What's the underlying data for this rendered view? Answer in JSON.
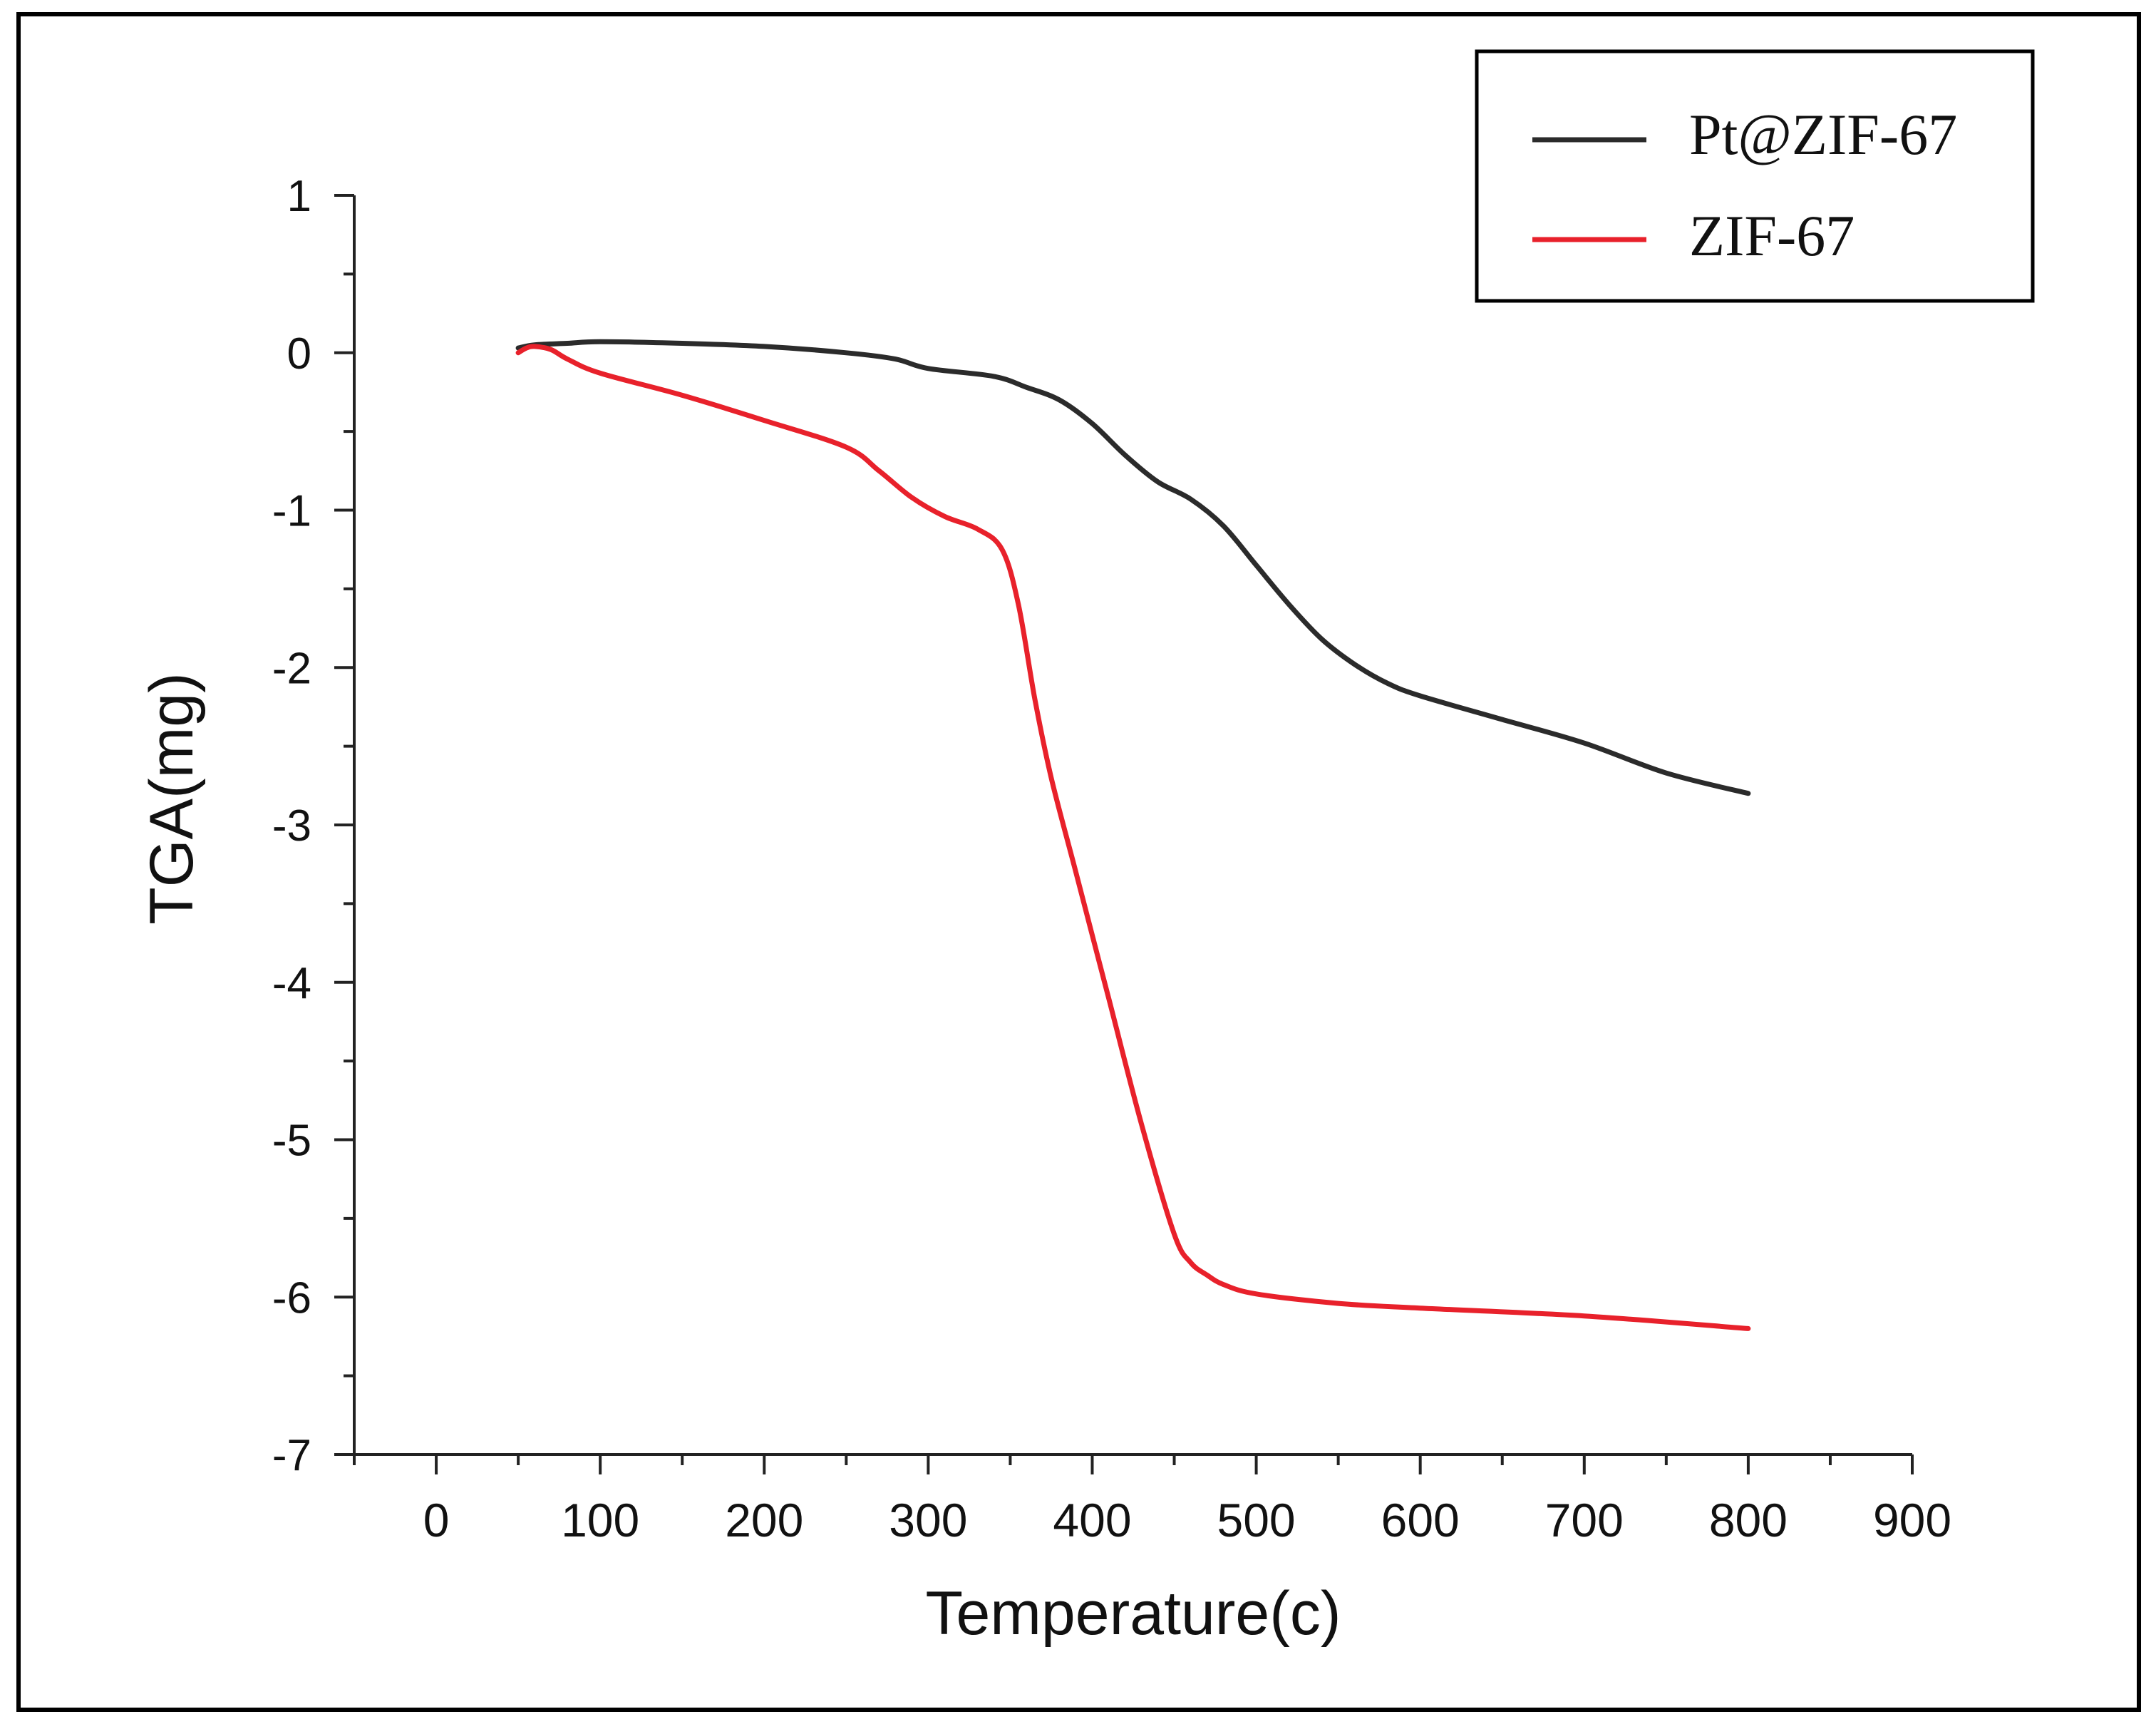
{
  "chart_data": {
    "type": "line",
    "title": "",
    "xlabel": "Temperature(c)",
    "ylabel": "TGA(mg)",
    "xlim": [
      -50,
      900
    ],
    "ylim": [
      -7,
      1
    ],
    "xticks": [
      0,
      100,
      200,
      300,
      400,
      500,
      600,
      700,
      800,
      900
    ],
    "yticks": [
      1,
      0,
      -1,
      -2,
      -3,
      -4,
      -5,
      -6,
      -7
    ],
    "xtick_labels": [
      "0",
      "100",
      "200",
      "300",
      "400",
      "500",
      "600",
      "700",
      "800",
      "900"
    ],
    "ytick_labels": [
      "1",
      "0",
      "-1",
      "-2",
      "-3",
      "-4",
      "-5",
      "-6",
      "-7"
    ],
    "grid": false,
    "legend_position": "top-right",
    "series": [
      {
        "name": "Pt@ZIF-67",
        "color": "#2b2b2b",
        "x": [
          50,
          60,
          80,
          100,
          150,
          200,
          250,
          280,
          300,
          340,
          360,
          380,
          400,
          420,
          440,
          460,
          480,
          500,
          520,
          540,
          560,
          580,
          600,
          650,
          700,
          750,
          800
        ],
        "y": [
          0.03,
          0.05,
          0.06,
          0.07,
          0.06,
          0.04,
          0.0,
          -0.04,
          -0.1,
          -0.15,
          -0.22,
          -0.3,
          -0.45,
          -0.65,
          -0.82,
          -0.93,
          -1.1,
          -1.35,
          -1.6,
          -1.82,
          -1.98,
          -2.1,
          -2.18,
          -2.33,
          -2.48,
          -2.67,
          -2.8
        ]
      },
      {
        "name": "ZIF-67",
        "color": "#e8212b",
        "x": [
          50,
          55,
          60,
          70,
          80,
          100,
          150,
          200,
          250,
          270,
          290,
          310,
          330,
          345,
          355,
          365,
          375,
          390,
          410,
          430,
          450,
          460,
          470,
          480,
          500,
          550,
          600,
          700,
          800
        ],
        "y": [
          0.0,
          0.03,
          0.04,
          0.02,
          -0.04,
          -0.13,
          -0.27,
          -0.43,
          -0.6,
          -0.75,
          -0.92,
          -1.04,
          -1.12,
          -1.25,
          -1.6,
          -2.2,
          -2.7,
          -3.3,
          -4.1,
          -4.9,
          -5.6,
          -5.78,
          -5.86,
          -5.92,
          -5.98,
          -6.04,
          -6.07,
          -6.12,
          -6.2
        ]
      }
    ]
  }
}
